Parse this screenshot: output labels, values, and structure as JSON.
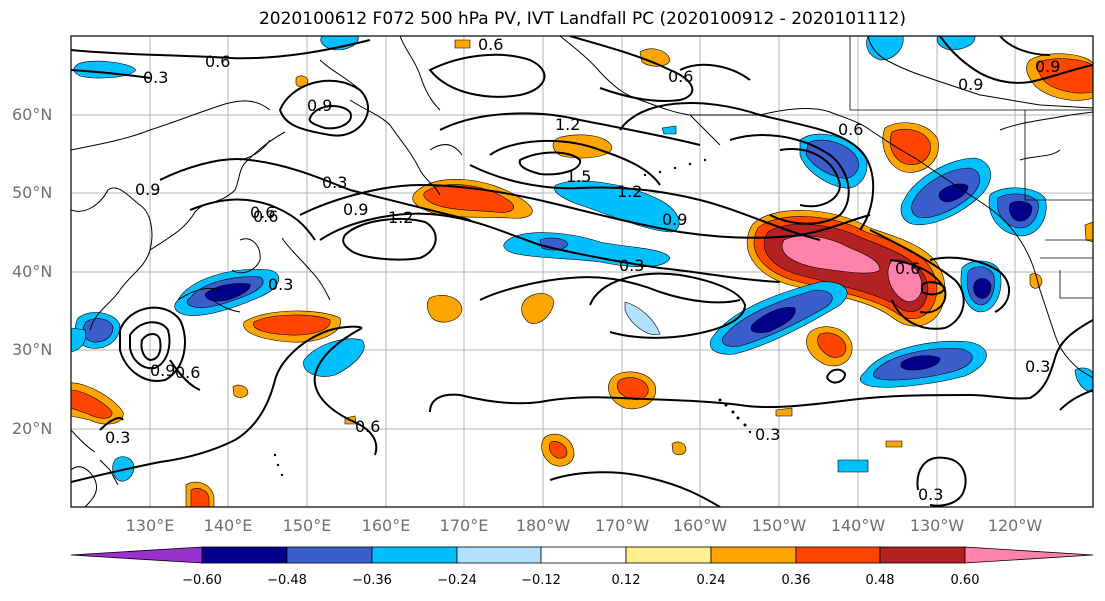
{
  "title": "2020100612 F072 500 hPa PV, IVT Landfall PC (2020100912 - 2020101112)",
  "map": {
    "lat_labels": [
      "60°N",
      "50°N",
      "40°N",
      "30°N",
      "20°N"
    ],
    "lon_labels": [
      "130°E",
      "140°E",
      "150°E",
      "160°E",
      "170°E",
      "180°W",
      "170°W",
      "160°W",
      "150°W",
      "140°W",
      "130°W",
      "120°W"
    ],
    "grid": true,
    "contour_labels": [
      "0.6",
      "0.3",
      "0.9",
      "0.6",
      "0.6",
      "0.9",
      "1.2",
      "1.5",
      "1.2",
      "0.9",
      "0.3",
      "0.6",
      "0.9",
      "1.2",
      "0.3",
      "0.6",
      "0.9",
      "0.3",
      "0.9",
      "0.6",
      "0.3",
      "0.6",
      "0.3",
      "0.3",
      "0.3",
      "0.6",
      "0.9",
      "0.6"
    ]
  },
  "colorbar": {
    "ticks": [
      "−0.60",
      "−0.48",
      "−0.36",
      "−0.24",
      "−0.12",
      "0.12",
      "0.24",
      "0.36",
      "0.48",
      "0.60"
    ],
    "colors": [
      "#9932cc",
      "#00008b",
      "#3a5fcd",
      "#00bfff",
      "#b0e2ff",
      "#ffffff",
      "#fff08f",
      "#ffa500",
      "#ff4500",
      "#b22222",
      "#ff82ab"
    ]
  }
}
